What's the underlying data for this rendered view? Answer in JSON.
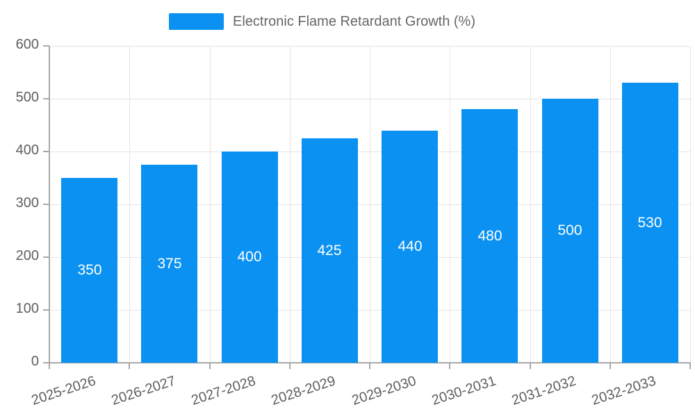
{
  "legend": {
    "label": "Electronic Flame Retardant Growth (%)"
  },
  "colors": {
    "bar": "#0a91f2",
    "grid": "#e4e4e4",
    "axis": "#a8a8a8",
    "tick_label": "#5f5f5f",
    "value_label": "#ffffff",
    "legend_text": "#666666",
    "background": "#ffffff"
  },
  "chart_data": {
    "type": "bar",
    "title": "Electronic Flame Retardant Growth (%)",
    "categories": [
      "2025-2026",
      "2026-2027",
      "2027-2028",
      "2028-2029",
      "2029-2030",
      "2030-2031",
      "2031-2032",
      "2032-2033"
    ],
    "values": [
      350,
      375,
      400,
      425,
      440,
      480,
      500,
      530
    ],
    "xlabel": "",
    "ylabel": "",
    "ylim": [
      0,
      600
    ],
    "yticks": [
      0,
      100,
      200,
      300,
      400,
      500,
      600
    ],
    "grid": true,
    "legend_position": "top",
    "bar_width_fraction": 0.7,
    "value_label_position": "inside-center",
    "xtick_rotation_deg": -18
  }
}
